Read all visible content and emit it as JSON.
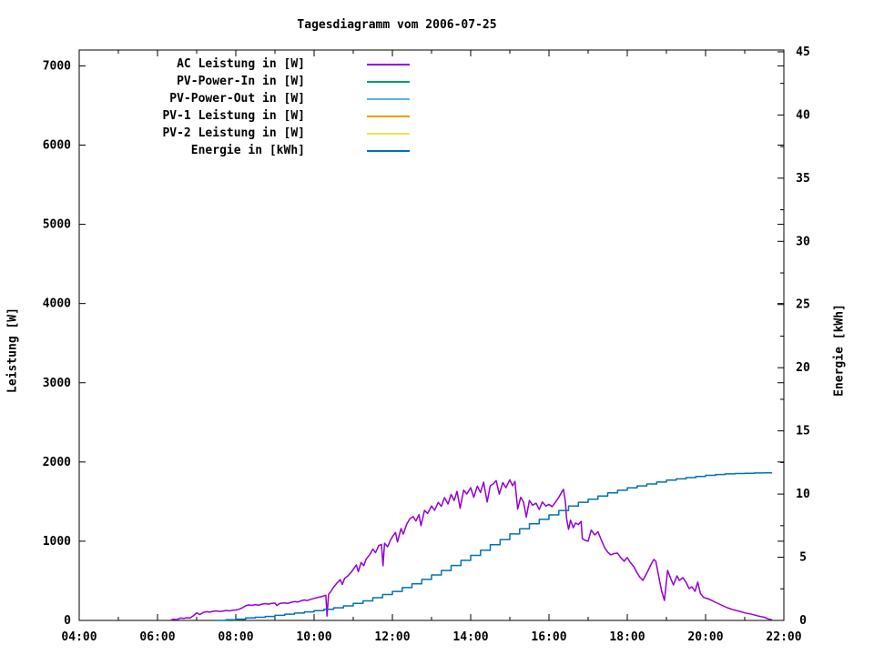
{
  "title": "Tagesdiagramm vom 2006-07-25",
  "legend": [
    {
      "label": "AC Leistung in [W]",
      "color": "#9400d3"
    },
    {
      "label": "PV-Power-In in [W]",
      "color": "#009e73"
    },
    {
      "label": "PV-Power-Out in [W]",
      "color": "#56b4e9"
    },
    {
      "label": "PV-1 Leistung in [W]",
      "color": "#e69f00"
    },
    {
      "label": "PV-2 Leistung in [W]",
      "color": "#f0e442"
    },
    {
      "label": "Energie in [kWh]",
      "color": "#0072b2"
    }
  ],
  "chart_data": {
    "type": "line",
    "title": "Tagesdiagramm vom 2006-07-25",
    "x_axis": {
      "tick_labels": [
        "04:00",
        "06:00",
        "08:00",
        "10:00",
        "12:00",
        "14:00",
        "16:00",
        "18:00",
        "20:00",
        "22:00"
      ],
      "tick_hours": [
        4,
        6,
        8,
        10,
        12,
        14,
        16,
        18,
        20,
        22
      ],
      "minor_tick_hours": [
        5,
        7,
        9,
        11,
        13,
        15,
        17,
        19,
        21
      ],
      "xlim": [
        4,
        22
      ]
    },
    "y_left": {
      "label": "Leistung [W]",
      "tick_values": [
        0,
        1000,
        2000,
        3000,
        4000,
        5000,
        6000,
        7000
      ],
      "lim": [
        0,
        7200
      ]
    },
    "y_right": {
      "label": "Energie [kWh]",
      "tick_values": [
        0,
        5,
        10,
        15,
        20,
        25,
        30,
        35,
        40,
        45
      ],
      "minor_tick_values": [
        2.5,
        7.5,
        12.5,
        17.5,
        22.5,
        27.5,
        32.5,
        37.5,
        42.5
      ],
      "lim": [
        0,
        45.14
      ]
    },
    "grid": false,
    "legend_position": "top-left-inside",
    "series": [
      {
        "name": "AC Leistung in [W]",
        "color": "#9400d3",
        "axis": "left",
        "style": "line",
        "points": [
          [
            6.33,
            0
          ],
          [
            6.4,
            15
          ],
          [
            6.5,
            10
          ],
          [
            6.58,
            30
          ],
          [
            6.67,
            25
          ],
          [
            6.75,
            35
          ],
          [
            6.83,
            30
          ],
          [
            6.92,
            60
          ],
          [
            7.0,
            95
          ],
          [
            7.08,
            75
          ],
          [
            7.17,
            100
          ],
          [
            7.25,
            110
          ],
          [
            7.33,
            105
          ],
          [
            7.42,
            115
          ],
          [
            7.5,
            120
          ],
          [
            7.58,
            112
          ],
          [
            7.67,
            118
          ],
          [
            7.75,
            125
          ],
          [
            7.83,
            120
          ],
          [
            7.92,
            128
          ],
          [
            8.0,
            132
          ],
          [
            8.08,
            140
          ],
          [
            8.17,
            160
          ],
          [
            8.25,
            185
          ],
          [
            8.33,
            195
          ],
          [
            8.42,
            190
          ],
          [
            8.5,
            200
          ],
          [
            8.58,
            192
          ],
          [
            8.67,
            205
          ],
          [
            8.75,
            212
          ],
          [
            8.83,
            205
          ],
          [
            8.92,
            215
          ],
          [
            9.0,
            218
          ],
          [
            9.05,
            188
          ],
          [
            9.13,
            215
          ],
          [
            9.25,
            222
          ],
          [
            9.33,
            215
          ],
          [
            9.42,
            230
          ],
          [
            9.5,
            238
          ],
          [
            9.58,
            232
          ],
          [
            9.67,
            248
          ],
          [
            9.75,
            258
          ],
          [
            9.83,
            252
          ],
          [
            9.92,
            268
          ],
          [
            10.0,
            278
          ],
          [
            10.08,
            288
          ],
          [
            10.17,
            298
          ],
          [
            10.25,
            310
          ],
          [
            10.3,
            318
          ],
          [
            10.33,
            55
          ],
          [
            10.37,
            330
          ],
          [
            10.42,
            360
          ],
          [
            10.5,
            420
          ],
          [
            10.58,
            470
          ],
          [
            10.67,
            515
          ],
          [
            10.72,
            455
          ],
          [
            10.78,
            530
          ],
          [
            10.87,
            565
          ],
          [
            10.95,
            610
          ],
          [
            11.0,
            645
          ],
          [
            11.08,
            700
          ],
          [
            11.13,
            615
          ],
          [
            11.2,
            730
          ],
          [
            11.27,
            690
          ],
          [
            11.33,
            775
          ],
          [
            11.42,
            830
          ],
          [
            11.5,
            900
          ],
          [
            11.57,
            855
          ],
          [
            11.65,
            945
          ],
          [
            11.72,
            960
          ],
          [
            11.76,
            690
          ],
          [
            11.8,
            975
          ],
          [
            11.88,
            930
          ],
          [
            11.95,
            1010
          ],
          [
            12.0,
            1055
          ],
          [
            12.08,
            1110
          ],
          [
            12.13,
            990
          ],
          [
            12.22,
            1160
          ],
          [
            12.28,
            1090
          ],
          [
            12.37,
            1220
          ],
          [
            12.45,
            1285
          ],
          [
            12.53,
            1310
          ],
          [
            12.6,
            1255
          ],
          [
            12.68,
            1335
          ],
          [
            12.73,
            1195
          ],
          [
            12.82,
            1390
          ],
          [
            12.9,
            1350
          ],
          [
            13.0,
            1445
          ],
          [
            13.08,
            1390
          ],
          [
            13.17,
            1490
          ],
          [
            13.25,
            1440
          ],
          [
            13.33,
            1550
          ],
          [
            13.42,
            1470
          ],
          [
            13.5,
            1590
          ],
          [
            13.58,
            1515
          ],
          [
            13.65,
            1630
          ],
          [
            13.73,
            1415
          ],
          [
            13.82,
            1645
          ],
          [
            13.9,
            1595
          ],
          [
            14.0,
            1675
          ],
          [
            14.08,
            1555
          ],
          [
            14.17,
            1695
          ],
          [
            14.25,
            1615
          ],
          [
            14.33,
            1745
          ],
          [
            14.42,
            1495
          ],
          [
            14.5,
            1700
          ],
          [
            14.58,
            1725
          ],
          [
            14.65,
            1765
          ],
          [
            14.73,
            1595
          ],
          [
            14.82,
            1740
          ],
          [
            14.9,
            1675
          ],
          [
            15.0,
            1775
          ],
          [
            15.07,
            1700
          ],
          [
            15.13,
            1755
          ],
          [
            15.2,
            1405
          ],
          [
            15.28,
            1555
          ],
          [
            15.35,
            1495
          ],
          [
            15.42,
            1305
          ],
          [
            15.5,
            1515
          ],
          [
            15.58,
            1455
          ],
          [
            15.67,
            1480
          ],
          [
            15.75,
            1400
          ],
          [
            15.83,
            1495
          ],
          [
            15.92,
            1445
          ],
          [
            16.0,
            1465
          ],
          [
            16.08,
            1435
          ],
          [
            16.17,
            1495
          ],
          [
            16.25,
            1555
          ],
          [
            16.33,
            1625
          ],
          [
            16.37,
            1655
          ],
          [
            16.42,
            1490
          ],
          [
            16.45,
            1290
          ],
          [
            16.5,
            1150
          ],
          [
            16.55,
            1265
          ],
          [
            16.62,
            1170
          ],
          [
            16.68,
            1230
          ],
          [
            16.75,
            1210
          ],
          [
            16.82,
            1250
          ],
          [
            16.85,
            1035
          ],
          [
            16.92,
            1010
          ],
          [
            17.0,
            1000
          ],
          [
            17.08,
            1140
          ],
          [
            17.17,
            1080
          ],
          [
            17.25,
            1120
          ],
          [
            17.33,
            1023
          ],
          [
            17.42,
            920
          ],
          [
            17.5,
            862
          ],
          [
            17.58,
            828
          ],
          [
            17.67,
            845
          ],
          [
            17.75,
            850
          ],
          [
            17.83,
            795
          ],
          [
            17.92,
            747
          ],
          [
            18.0,
            793
          ],
          [
            18.08,
            730
          ],
          [
            18.17,
            678
          ],
          [
            18.25,
            598
          ],
          [
            18.33,
            540
          ],
          [
            18.4,
            505
          ],
          [
            18.5,
            598
          ],
          [
            18.6,
            700
          ],
          [
            18.68,
            770
          ],
          [
            18.73,
            745
          ],
          [
            18.8,
            563
          ],
          [
            18.88,
            368
          ],
          [
            18.95,
            253
          ],
          [
            19.03,
            632
          ],
          [
            19.1,
            540
          ],
          [
            19.18,
            448
          ],
          [
            19.27,
            563
          ],
          [
            19.33,
            505
          ],
          [
            19.42,
            540
          ],
          [
            19.5,
            483
          ],
          [
            19.58,
            402
          ],
          [
            19.65,
            425
          ],
          [
            19.73,
            368
          ],
          [
            19.8,
            483
          ],
          [
            19.87,
            340
          ],
          [
            19.95,
            290
          ],
          [
            20.05,
            276
          ],
          [
            20.15,
            255
          ],
          [
            20.25,
            230
          ],
          [
            20.4,
            195
          ],
          [
            20.55,
            161
          ],
          [
            20.7,
            135
          ],
          [
            20.87,
            115
          ],
          [
            21.0,
            95
          ],
          [
            21.18,
            78
          ],
          [
            21.35,
            55
          ],
          [
            21.5,
            40
          ],
          [
            21.6,
            20
          ],
          [
            21.7,
            8
          ]
        ]
      },
      {
        "name": "PV-Power-In in [W]",
        "color": "#009e73",
        "axis": "left",
        "style": "line",
        "points": []
      },
      {
        "name": "PV-Power-Out in [W]",
        "color": "#56b4e9",
        "axis": "left",
        "style": "line",
        "points": []
      },
      {
        "name": "PV-1 Leistung in [W]",
        "color": "#e69f00",
        "axis": "left",
        "style": "line",
        "points": []
      },
      {
        "name": "PV-2 Leistung in [W]",
        "color": "#f0e442",
        "axis": "left",
        "style": "line",
        "points": []
      },
      {
        "name": "Energie in [kWh]",
        "color": "#0072b2",
        "axis": "right",
        "style": "steps",
        "points": [
          [
            7.5,
            0
          ],
          [
            7.75,
            0.05
          ],
          [
            8.0,
            0.1
          ],
          [
            8.25,
            0.2
          ],
          [
            8.5,
            0.25
          ],
          [
            8.75,
            0.32
          ],
          [
            9.0,
            0.4
          ],
          [
            9.25,
            0.5
          ],
          [
            9.5,
            0.58
          ],
          [
            9.75,
            0.68
          ],
          [
            10.0,
            0.78
          ],
          [
            10.25,
            0.88
          ],
          [
            10.5,
            1.0
          ],
          [
            10.75,
            1.15
          ],
          [
            11.0,
            1.35
          ],
          [
            11.25,
            1.55
          ],
          [
            11.5,
            1.8
          ],
          [
            11.75,
            2.05
          ],
          [
            12.0,
            2.3
          ],
          [
            12.25,
            2.6
          ],
          [
            12.5,
            2.9
          ],
          [
            12.75,
            3.25
          ],
          [
            13.0,
            3.6
          ],
          [
            13.25,
            3.95
          ],
          [
            13.5,
            4.35
          ],
          [
            13.75,
            4.75
          ],
          [
            14.0,
            5.15
          ],
          [
            14.25,
            5.55
          ],
          [
            14.5,
            6.0
          ],
          [
            14.75,
            6.4
          ],
          [
            15.0,
            6.85
          ],
          [
            15.25,
            7.25
          ],
          [
            15.5,
            7.65
          ],
          [
            15.75,
            8.0
          ],
          [
            16.0,
            8.35
          ],
          [
            16.25,
            8.7
          ],
          [
            16.5,
            9.05
          ],
          [
            16.75,
            9.35
          ],
          [
            17.0,
            9.6
          ],
          [
            17.25,
            9.85
          ],
          [
            17.5,
            10.1
          ],
          [
            17.75,
            10.3
          ],
          [
            18.0,
            10.5
          ],
          [
            18.25,
            10.65
          ],
          [
            18.5,
            10.8
          ],
          [
            18.75,
            10.95
          ],
          [
            19.0,
            11.1
          ],
          [
            19.25,
            11.2
          ],
          [
            19.5,
            11.3
          ],
          [
            19.75,
            11.4
          ],
          [
            20.0,
            11.48
          ],
          [
            20.25,
            11.55
          ],
          [
            20.5,
            11.6
          ],
          [
            20.75,
            11.63
          ],
          [
            21.0,
            11.65
          ],
          [
            21.25,
            11.67
          ],
          [
            21.5,
            11.68
          ],
          [
            21.7,
            11.68
          ]
        ]
      }
    ]
  }
}
